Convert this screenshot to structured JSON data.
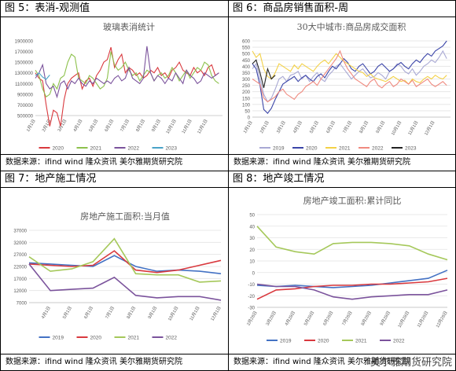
{
  "panels": [
    {
      "header": "图 5：表消-观测值",
      "source": "数据来源：ifind wind 隆众资讯 美尔雅期货研究院",
      "chart_data": {
        "type": "line",
        "title": "玻璃表消统计",
        "ylim": [
          500000,
          1900000
        ],
        "yticks": [
          500000,
          700000,
          900000,
          1100000,
          1300000,
          1500000,
          1700000,
          1900000
        ],
        "ytick_labels": [
          "500000",
          "700000",
          "900000",
          "1100000",
          "1300000",
          "1500000",
          "1700000",
          "1900000"
        ],
        "xtick_labels": [
          "1月1日",
          "2月1日",
          "3月1日",
          "4月1日",
          "5月1日",
          "6月1日",
          "7月1日",
          "8月1日",
          "9月1日",
          "10月1日",
          "11月1日",
          "12月1日"
        ],
        "xmax": 52,
        "series": [
          {
            "name": "2020",
            "color": "#d9393e",
            "values": [
              1300000,
              1200000,
              1150000,
              700000,
              300000,
              600000,
              550000,
              300000,
              800000,
              1100000,
              1200000,
              1250000,
              1300000,
              1000000,
              1150000,
              1200000,
              1050000,
              1250000,
              1350000,
              1500000,
              1550000,
              1780000,
              1400000,
              1550000,
              1650000,
              1300000,
              1400000,
              1350000,
              1250000,
              1300000,
              1200000,
              1250000,
              1350000,
              1300000,
              1400000,
              1250000,
              1300000,
              1200000,
              1350000,
              1400000,
              1500000,
              1350000,
              1300000,
              1250000,
              1400000,
              1300000,
              1350000,
              1250000,
              1400000,
              1450000,
              1250000,
              1300000
            ]
          },
          {
            "name": "2021",
            "color": "#8dc14c",
            "values": [
              1350000,
              1250000,
              1000000,
              850000,
              900000,
              1100000,
              1000000,
              1200000,
              1250000,
              1500000,
              1650000,
              1600000,
              1200000,
              1150000,
              1100000,
              1250000,
              1200000,
              1100000,
              1000000,
              1050000,
              1200000,
              1700000,
              1450000,
              1350000,
              1400000,
              1500000,
              1350000,
              1250000,
              1300000,
              1150000,
              1250000,
              1350000,
              1300000,
              1150000,
              1250000,
              1300000,
              1200000,
              1250000,
              1400000,
              1300000,
              1150000,
              1250000,
              1350000,
              1200000,
              1300000,
              1400000,
              1350000,
              1500000,
              1450000,
              1250000,
              1150000,
              1100000
            ]
          },
          {
            "name": "2022",
            "color": "#7b539c",
            "values": [
              1200000,
              1300000,
              1450000,
              1100000,
              1000000,
              1050000,
              850000,
              1100000,
              1150000,
              1000000,
              1150000,
              1100000,
              1200000,
              1100000,
              1050000,
              1150000,
              1100000,
              1200000,
              1150000,
              1100000,
              1150000,
              1100000,
              1200000,
              1250000,
              1150000,
              1200000,
              1400000,
              1200000,
              1150000,
              1100000,
              1200000,
              1800000,
              1300000,
              1150000,
              1250000,
              1200000,
              1100000,
              1200000,
              1150000,
              1300000,
              1200000,
              1100000,
              1350000,
              1250000,
              1200000,
              1100000,
              1150000,
              1300000,
              1250000,
              1200000,
              1250000,
              1300000
            ]
          },
          {
            "name": "2023",
            "color": "#4aa3c8",
            "values": [
              1250000,
              1300000,
              1220000,
              1180000,
              1260000
            ]
          }
        ],
        "legend_position": "bottom"
      }
    },
    {
      "header": "图 6：商品房销售面积-周",
      "source": "数据来源：ifind wind 隆众资讯 美尔雅期货研究院",
      "chart_data": {
        "type": "line",
        "title": "30大中城市:商品房成交面积",
        "ylim": [
          0,
          600
        ],
        "yticks": [
          0,
          50,
          100,
          150,
          200,
          250,
          300,
          350,
          400,
          450,
          500,
          550,
          600
        ],
        "ytick_labels": [
          "0",
          "50",
          "100",
          "150",
          "200",
          "250",
          "300",
          "350",
          "400",
          "450",
          "500",
          "550",
          "600"
        ],
        "xtick_labels": [
          "1月1日",
          "2月1日",
          "3月1日",
          "4月1日",
          "5月1日",
          "6月1日",
          "7月1日",
          "8月1日",
          "9月1日",
          "10月1日",
          "11月1日",
          "12月1日"
        ],
        "xmax": 52,
        "series": [
          {
            "name": "2019",
            "color": "#a9a9d4",
            "values": [
              380,
              420,
              300,
              180,
              120,
              150,
              220,
              300,
              320,
              280,
              330,
              340,
              360,
              300,
              330,
              280,
              320,
              350,
              300,
              280,
              330,
              360,
              400,
              420,
              380,
              340,
              300,
              330,
              360,
              380,
              340,
              310,
              320,
              350,
              330,
              300,
              360,
              380,
              420,
              400,
              360,
              340,
              380,
              330,
              360,
              400,
              420,
              450,
              430,
              470,
              520,
              460
            ]
          },
          {
            "name": "2020",
            "color": "#3b45a8",
            "values": [
              420,
              380,
              250,
              60,
              30,
              70,
              140,
              200,
              260,
              280,
              300,
              320,
              280,
              310,
              330,
              300,
              280,
              320,
              340,
              310,
              360,
              400,
              380,
              420,
              460,
              430,
              380,
              360,
              400,
              420,
              380,
              340,
              360,
              400,
              420,
              390,
              360,
              380,
              410,
              430,
              400,
              380,
              420,
              450,
              430,
              470,
              500,
              480,
              520,
              540,
              560,
              600
            ]
          },
          {
            "name": "2021",
            "color": "#f3d147",
            "values": [
              520,
              470,
              500,
              380,
              320,
              300,
              350,
              420,
              400,
              380,
              360,
              410,
              380,
              420,
              400,
              380,
              360,
              400,
              430,
              450,
              420,
              460,
              500,
              470,
              440,
              420,
              400,
              380,
              360,
              350,
              320,
              340,
              310,
              300,
              290,
              280,
              300,
              320,
              300,
              280,
              290,
              260,
              300,
              280,
              270,
              300,
              320,
              300,
              330,
              310,
              300,
              330
            ]
          },
          {
            "name": "2022",
            "color": "#f08a7f",
            "values": [
              300,
              280,
              260,
              150,
              120,
              140,
              160,
              200,
              220,
              180,
              160,
              140,
              180,
              200,
              240,
              260,
              280,
              250,
              300,
              340,
              380,
              420,
              460,
              520,
              440,
              380,
              340,
              300,
              280,
              260,
              240,
              280,
              300,
              250,
              230,
              260,
              280,
              240,
              260,
              300,
              280,
              260,
              290,
              240,
              260,
              280,
              300,
              260,
              240,
              260,
              280,
              250
            ]
          },
          {
            "name": "2023",
            "color": "#222222",
            "values": [
              420,
              450,
              350,
              230,
              380,
              300,
              330
            ]
          }
        ],
        "legend_position": "bottom"
      }
    },
    {
      "header": "图 7：地产施工情况",
      "source": "数据来源：ifind wind 隆众资讯 美尔雅期货研究院",
      "chart_data": {
        "type": "line",
        "title": "房地产施工面积:当月值",
        "ylim": [
          7000,
          37000
        ],
        "yticks": [
          7000,
          12000,
          17000,
          22000,
          27000,
          32000,
          37000
        ],
        "ytick_labels": [
          "7000",
          "12000",
          "17000",
          "22000",
          "27000",
          "32000",
          "37000"
        ],
        "x": [
          3,
          4,
          5,
          6,
          7,
          8,
          9,
          10,
          11,
          12
        ],
        "xtick_labels": [
          "4月1日",
          "5月1日",
          "6月1日",
          "7月1日",
          "8月1日",
          "9月1日",
          "10月1日",
          "11月1日",
          "12月1日"
        ],
        "xtick_positions": [
          4,
          5,
          6,
          7,
          8,
          9,
          10,
          11,
          12
        ],
        "xmin": 3,
        "xmax": 12,
        "series": [
          {
            "name": "2019",
            "color": "#4472c4",
            "values": [
              23500,
              23000,
              22500,
              22000,
              26500,
              22000,
              20000,
              20500,
              20000,
              19000
            ]
          },
          {
            "name": "2020",
            "color": "#d9393e",
            "values": [
              23000,
              22500,
              22000,
              22500,
              28500,
              20500,
              19500,
              20500,
              22500,
              24500
            ]
          },
          {
            "name": "2021",
            "color": "#a5c85a",
            "values": [
              26000,
              20000,
              21000,
              24000,
              33500,
              19000,
              18500,
              18500,
              15500,
              16000
            ]
          },
          {
            "name": "2022",
            "color": "#7b539c",
            "values": [
              23000,
              12000,
              12500,
              13000,
              17500,
              10000,
              9000,
              9500,
              9500,
              8000
            ]
          }
        ],
        "legend_position": "bottom"
      }
    },
    {
      "header": "图 8：地产竣工情况",
      "source": "数据来源：ifind wind 隆众资讯 美尔雅期货研究院",
      "watermark": "美尔雅期货研究院",
      "chart_data": {
        "type": "line",
        "title": "房地产竣工面积:累计同比",
        "ylim": [
          -30,
          50
        ],
        "yticks": [
          -30,
          -20,
          -10,
          0,
          10,
          20,
          30,
          40,
          50
        ],
        "ytick_labels": [
          "-30",
          "-20",
          "-10",
          "0",
          "10",
          "20",
          "30",
          "40",
          "50"
        ],
        "x": [
          2,
          3,
          4,
          5,
          6,
          7,
          8,
          9,
          10,
          11,
          12
        ],
        "xtick_labels": [
          "2月28日",
          "3月28日",
          "4月28日",
          "5月28日",
          "6月28日",
          "7月28日",
          "8月28日",
          "9月28日",
          "10月28日",
          "11月28日",
          "12月28日"
        ],
        "xtick_positions": [
          2,
          3,
          4,
          5,
          6,
          7,
          8,
          9,
          10,
          11,
          12
        ],
        "xmin": 2,
        "xmax": 12,
        "series": [
          {
            "name": "2019",
            "color": "#4472c4",
            "values": [
              -11,
              -12,
              -11,
              -12,
              -13,
              -12,
              -11,
              -9,
              -7,
              -5,
              2
            ]
          },
          {
            "name": "2020",
            "color": "#d9393e",
            "values": [
              -23,
              -15,
              -14,
              -12,
              -11,
              -11,
              -10,
              -10,
              -9,
              -8,
              -5
            ]
          },
          {
            "name": "2021",
            "color": "#a5c85a",
            "values": [
              40,
              22,
              18,
              16,
              25,
              26,
              26,
              25,
              23,
              16,
              11
            ]
          },
          {
            "name": "2022",
            "color": "#7b539c",
            "values": [
              -10,
              -12,
              -12,
              -15,
              -21,
              -23,
              -21,
              -20,
              -19,
              -19,
              -15
            ]
          }
        ],
        "legend_position": "bottom"
      }
    }
  ]
}
